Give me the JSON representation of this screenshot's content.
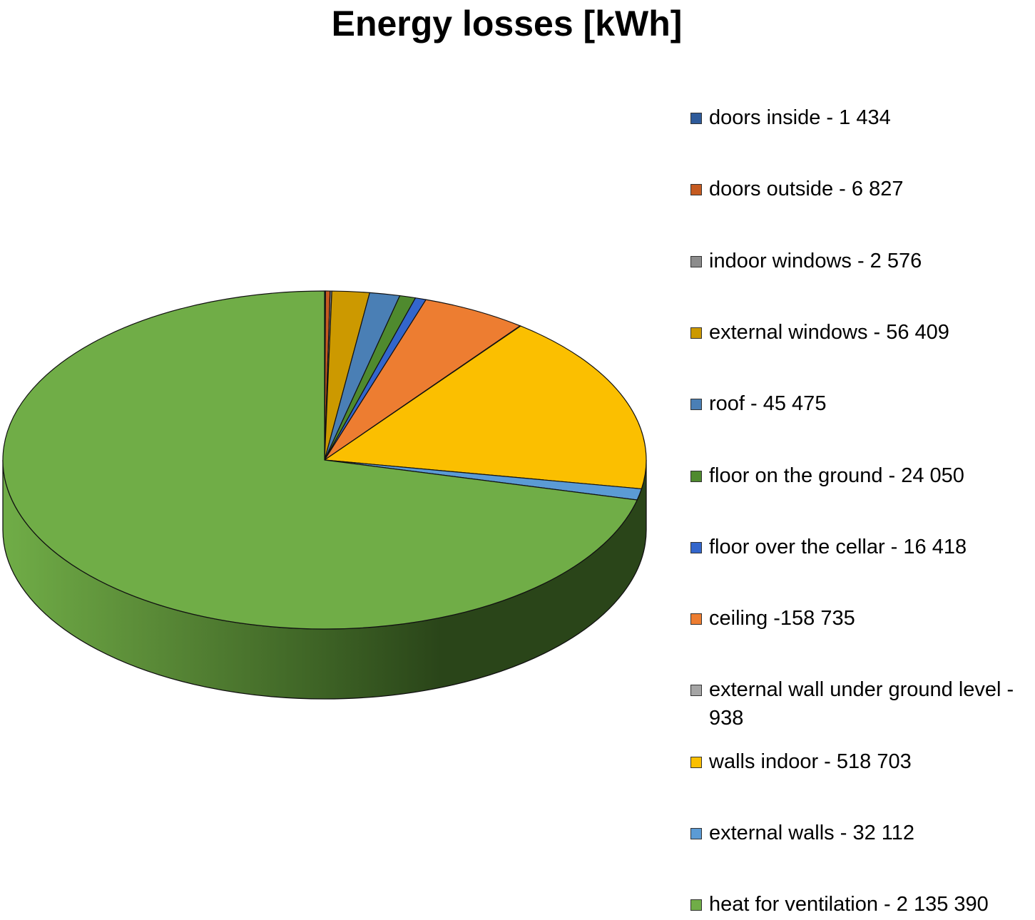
{
  "chart_data": {
    "type": "pie",
    "title": "Energy losses [kWh]",
    "legend_position": "right",
    "slices": [
      {
        "label": "doors inside - 1 434",
        "value": 1434,
        "color": "#2e5a9a"
      },
      {
        "label": "doors outside - 6 827",
        "value": 6827,
        "color": "#c55a20"
      },
      {
        "label": "indoor windows - 2 576",
        "value": 2576,
        "color": "#8c8c8c"
      },
      {
        "label": "external windows - 56 409",
        "value": 56409,
        "color": "#cc9900"
      },
      {
        "label": "roof - 45 475",
        "value": 45475,
        "color": "#4a7fb5"
      },
      {
        "label": "floor on the ground - 24 050",
        "value": 24050,
        "color": "#4f8a2e"
      },
      {
        "label": "floor over the cellar - 16 418",
        "value": 16418,
        "color": "#3366cc"
      },
      {
        "label": "ceiling -158 735",
        "value": 158735,
        "color": "#ed7d31"
      },
      {
        "label": "external wall under ground level - 938",
        "value": 938,
        "color": "#a5a5a5"
      },
      {
        "label": "walls indoor - 518 703",
        "value": 518703,
        "color": "#fbbf00"
      },
      {
        "label": "external walls - 32 112",
        "value": 32112,
        "color": "#5b9bd5"
      },
      {
        "label": "heat for ventilation - 2 135 390",
        "value": 2135390,
        "color": "#70ad47"
      }
    ]
  }
}
